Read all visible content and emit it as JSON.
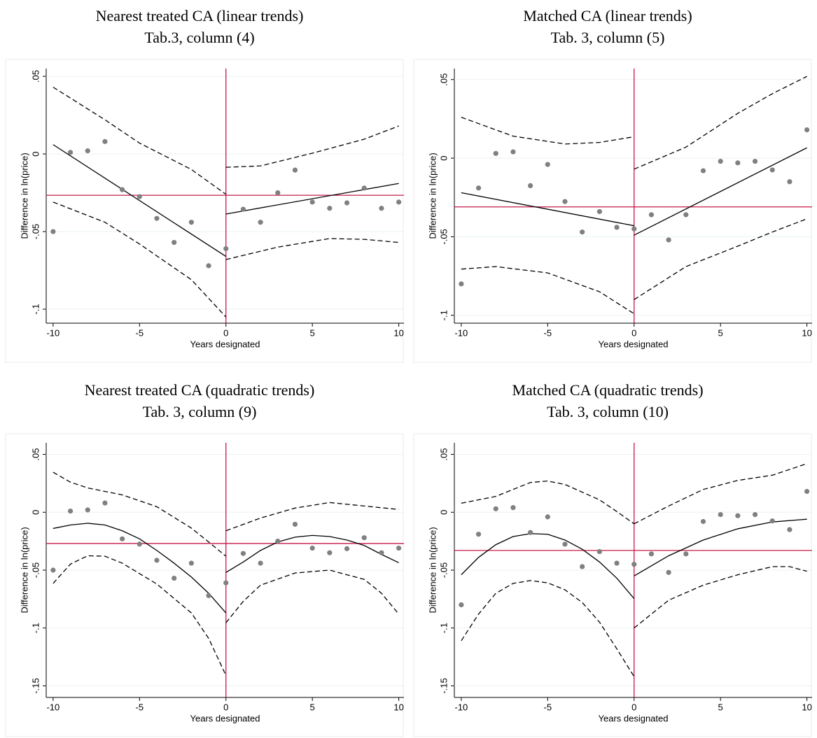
{
  "chart_data": [
    {
      "type": "scatter",
      "title": "Nearest treated CA (linear trends)",
      "subtitle": "Tab.3, column (4)",
      "xlabel": "Years designated",
      "ylabel": "Difference in ln(price)",
      "xlim": [
        -10.4,
        10.3
      ],
      "ylim": [
        -0.109,
        0.055
      ],
      "xticks": [
        -10,
        -5,
        0,
        5,
        10
      ],
      "yticks": [
        {
          "value": -0.1,
          "label": "-.1"
        },
        {
          "value": -0.05,
          "label": "-.05"
        },
        0,
        {
          "value": 0.05,
          "label": ".05"
        }
      ],
      "points": {
        "color": "#808080",
        "x": [
          -10,
          -9,
          -8,
          -7,
          -6,
          -5,
          -4,
          -3,
          -2,
          -1,
          0,
          1,
          2,
          3,
          4,
          5,
          6,
          7,
          8,
          9,
          10
        ],
        "values": [
          -0.05,
          0.001,
          0.002,
          0.008,
          -0.023,
          -0.0275,
          -0.0415,
          -0.057,
          -0.044,
          -0.072,
          -0.061,
          -0.0356,
          -0.044,
          -0.025,
          -0.0104,
          -0.031,
          -0.035,
          -0.0315,
          -0.022,
          -0.035,
          -0.031
        ]
      },
      "fits": [
        {
          "dashed": false,
          "color": "#000000",
          "x": [
            -10,
            0
          ],
          "values": [
            0.006,
            -0.066
          ]
        },
        {
          "dashed": false,
          "color": "#000000",
          "x": [
            0,
            10
          ],
          "values": [
            -0.0387,
            -0.019
          ]
        },
        {
          "dashed": true,
          "color": "#000000",
          "x": [
            -10,
            -7,
            -5,
            -2,
            0
          ],
          "values": [
            0.043,
            0.022,
            0.007,
            -0.01,
            -0.026
          ]
        },
        {
          "dashed": true,
          "color": "#000000",
          "x": [
            -10,
            -7,
            -5,
            -2,
            0
          ],
          "values": [
            -0.031,
            -0.044,
            -0.058,
            -0.081,
            -0.105
          ]
        },
        {
          "dashed": true,
          "color": "#000000",
          "x": [
            0,
            2,
            5,
            8,
            10
          ],
          "values": [
            -0.0086,
            -0.0077,
            0.0005,
            0.0095,
            0.018
          ]
        },
        {
          "dashed": true,
          "color": "#000000",
          "x": [
            0,
            3,
            6,
            8,
            10
          ],
          "values": [
            -0.068,
            -0.06,
            -0.0545,
            -0.055,
            -0.057
          ]
        }
      ],
      "hline": {
        "value": -0.0266,
        "color": "#c8184a"
      },
      "vline": {
        "value": 0,
        "color": "#c8184a"
      }
    },
    {
      "type": "scatter",
      "title": "Matched CA (linear trends)",
      "subtitle": "Tab. 3, column (5)",
      "xlabel": "Years designated",
      "ylabel": "Difference in ln(price)",
      "xlim": [
        -10.4,
        10.3
      ],
      "ylim": [
        -0.105,
        0.057
      ],
      "xticks": [
        -10,
        -5,
        0,
        5,
        10
      ],
      "yticks": [
        {
          "value": -0.1,
          "label": "-.1"
        },
        {
          "value": -0.05,
          "label": "-.05"
        },
        0,
        {
          "value": 0.05,
          "label": ".05"
        }
      ],
      "points": {
        "color": "#808080",
        "x": [
          -10,
          -9,
          -8,
          -7,
          -6,
          -5,
          -4,
          -3,
          -2,
          -1,
          0,
          1,
          2,
          3,
          4,
          5,
          6,
          7,
          8,
          9,
          10
        ],
        "values": [
          -0.08,
          -0.019,
          0.003,
          0.004,
          -0.0175,
          -0.004,
          -0.0276,
          -0.047,
          -0.034,
          -0.044,
          -0.045,
          -0.036,
          -0.052,
          -0.036,
          -0.008,
          -0.002,
          -0.003,
          -0.002,
          -0.0075,
          -0.015,
          0.018
        ]
      },
      "fits": [
        {
          "dashed": false,
          "color": "#000000",
          "x": [
            -10,
            0
          ],
          "values": [
            -0.022,
            -0.043
          ]
        },
        {
          "dashed": false,
          "color": "#000000",
          "x": [
            0,
            10
          ],
          "values": [
            -0.049,
            0.0066
          ]
        },
        {
          "dashed": true,
          "color": "#000000",
          "x": [
            -10,
            -7,
            -4,
            -2,
            0
          ],
          "values": [
            0.026,
            0.014,
            0.009,
            0.01,
            0.0136
          ]
        },
        {
          "dashed": true,
          "color": "#000000",
          "x": [
            -10,
            -8,
            -5,
            -2,
            0
          ],
          "values": [
            -0.0706,
            -0.069,
            -0.073,
            -0.085,
            -0.099
          ]
        },
        {
          "dashed": true,
          "color": "#000000",
          "x": [
            0,
            3,
            6,
            8,
            10
          ],
          "values": [
            -0.007,
            0.007,
            0.0285,
            0.041,
            0.052
          ]
        },
        {
          "dashed": true,
          "color": "#000000",
          "x": [
            0,
            3,
            6,
            8,
            10
          ],
          "values": [
            -0.09,
            -0.069,
            -0.056,
            -0.047,
            -0.0386
          ]
        }
      ],
      "hline": {
        "value": -0.031,
        "color": "#c8184a"
      },
      "vline": {
        "value": 0,
        "color": "#c8184a"
      }
    },
    {
      "type": "scatter",
      "title": "Nearest treated CA (quadratic trends)",
      "subtitle": "Tab. 3, column (9)",
      "xlabel": "Years designated",
      "ylabel": "Difference in ln(price)",
      "xlim": [
        -10.4,
        10.3
      ],
      "ylim": [
        -0.16,
        0.06
      ],
      "xticks": [
        -10,
        -5,
        0,
        5,
        10
      ],
      "yticks": [
        {
          "value": -0.15,
          "label": "-.15"
        },
        {
          "value": -0.1,
          "label": "-.1"
        },
        {
          "value": -0.05,
          "label": "-.05"
        },
        0,
        {
          "value": 0.05,
          "label": ".05"
        }
      ],
      "points": {
        "color": "#808080",
        "x": [
          -10,
          -9,
          -8,
          -7,
          -6,
          -5,
          -4,
          -3,
          -2,
          -1,
          0,
          1,
          2,
          3,
          4,
          5,
          6,
          7,
          8,
          9,
          10
        ],
        "values": [
          -0.05,
          0.001,
          0.002,
          0.008,
          -0.023,
          -0.0275,
          -0.0415,
          -0.057,
          -0.044,
          -0.072,
          -0.061,
          -0.0356,
          -0.044,
          -0.025,
          -0.0104,
          -0.031,
          -0.035,
          -0.0315,
          -0.022,
          -0.035,
          -0.031
        ]
      },
      "fits": [
        {
          "dashed": false,
          "color": "#000000",
          "x": [
            -10,
            -9,
            -8,
            -7,
            -6,
            -5,
            -4,
            -3,
            -2,
            -1,
            0
          ],
          "values": [
            -0.014,
            -0.011,
            -0.0095,
            -0.011,
            -0.016,
            -0.023,
            -0.033,
            -0.044,
            -0.056,
            -0.07,
            -0.087
          ]
        },
        {
          "dashed": false,
          "color": "#000000",
          "x": [
            0,
            1,
            2,
            3,
            4,
            5,
            6,
            7,
            8,
            9,
            10
          ],
          "values": [
            -0.052,
            -0.043,
            -0.033,
            -0.0257,
            -0.0215,
            -0.02,
            -0.021,
            -0.024,
            -0.0287,
            -0.0364,
            -0.0436
          ]
        },
        {
          "dashed": true,
          "color": "#000000",
          "x": [
            -10,
            -9,
            -8,
            -6,
            -4,
            -2,
            -1,
            0
          ],
          "values": [
            0.0346,
            0.026,
            0.021,
            0.015,
            0.0048,
            -0.0137,
            -0.0257,
            -0.038
          ]
        },
        {
          "dashed": true,
          "color": "#000000",
          "x": [
            -10,
            -9,
            -8,
            -7,
            -6,
            -4,
            -2,
            -1,
            0
          ],
          "values": [
            -0.0615,
            -0.0448,
            -0.0376,
            -0.038,
            -0.044,
            -0.062,
            -0.087,
            -0.109,
            -0.141
          ]
        },
        {
          "dashed": true,
          "color": "#000000",
          "x": [
            0,
            2,
            4,
            6,
            8,
            10
          ],
          "values": [
            -0.016,
            -0.005,
            0.0036,
            0.0084,
            0.0054,
            0.0024
          ]
        },
        {
          "dashed": true,
          "color": "#000000",
          "x": [
            0,
            1,
            2,
            4,
            6,
            8,
            9,
            10
          ],
          "values": [
            -0.0955,
            -0.077,
            -0.063,
            -0.0525,
            -0.05,
            -0.058,
            -0.07,
            -0.088
          ]
        }
      ],
      "hline": {
        "value": -0.027,
        "color": "#c8184a"
      },
      "vline": {
        "value": 0,
        "color": "#c8184a"
      }
    },
    {
      "type": "scatter",
      "title": "Matched CA (quadratic trends)",
      "subtitle": "Tab. 3, column (10)",
      "xlabel": "Years designated",
      "ylabel": "Difference in ln(price)",
      "xlim": [
        -10.4,
        10.3
      ],
      "ylim": [
        -0.16,
        0.06
      ],
      "xticks": [
        -10,
        -5,
        0,
        5,
        10
      ],
      "yticks": [
        {
          "value": -0.15,
          "label": "-.15"
        },
        {
          "value": -0.1,
          "label": "-.1"
        },
        {
          "value": -0.05,
          "label": "-.05"
        },
        0,
        {
          "value": 0.05,
          "label": ".05"
        }
      ],
      "points": {
        "color": "#808080",
        "x": [
          -10,
          -9,
          -8,
          -7,
          -6,
          -5,
          -4,
          -3,
          -2,
          -1,
          0,
          1,
          2,
          3,
          4,
          5,
          6,
          7,
          8,
          9,
          10
        ],
        "values": [
          -0.08,
          -0.019,
          0.003,
          0.004,
          -0.0175,
          -0.004,
          -0.0276,
          -0.047,
          -0.034,
          -0.044,
          -0.045,
          -0.036,
          -0.052,
          -0.036,
          -0.008,
          -0.002,
          -0.003,
          -0.002,
          -0.0075,
          -0.015,
          0.018
        ]
      },
      "fits": [
        {
          "dashed": false,
          "color": "#000000",
          "x": [
            -10,
            -9,
            -8,
            -7,
            -6,
            -5,
            -4,
            -3,
            -2,
            -1,
            0
          ],
          "values": [
            -0.054,
            -0.039,
            -0.028,
            -0.021,
            -0.0185,
            -0.019,
            -0.024,
            -0.032,
            -0.043,
            -0.057,
            -0.0746
          ]
        },
        {
          "dashed": false,
          "color": "#000000",
          "x": [
            0,
            2,
            4,
            6,
            8,
            10
          ],
          "values": [
            -0.055,
            -0.0376,
            -0.024,
            -0.0143,
            -0.0084,
            -0.006
          ]
        },
        {
          "dashed": true,
          "color": "#000000",
          "x": [
            -10,
            -8,
            -6,
            -5,
            -4,
            -2,
            -1,
            0
          ],
          "values": [
            0.0078,
            0.0137,
            0.0257,
            0.027,
            0.024,
            0.0107,
            0.0006,
            -0.01
          ]
        },
        {
          "dashed": true,
          "color": "#000000",
          "x": [
            -10,
            -9,
            -8,
            -7,
            -6,
            -5,
            -4,
            -3,
            -2,
            -1,
            0
          ],
          "values": [
            -0.111,
            -0.088,
            -0.07,
            -0.0615,
            -0.059,
            -0.061,
            -0.067,
            -0.078,
            -0.095,
            -0.118,
            -0.142
          ]
        },
        {
          "dashed": true,
          "color": "#000000",
          "x": [
            0,
            2,
            4,
            6,
            8,
            10
          ],
          "values": [
            -0.01,
            0.0054,
            0.0197,
            0.0275,
            0.032,
            0.042
          ]
        },
        {
          "dashed": true,
          "color": "#000000",
          "x": [
            0,
            2,
            4,
            6,
            8,
            9,
            10
          ],
          "values": [
            -0.1,
            -0.076,
            -0.063,
            -0.054,
            -0.047,
            -0.047,
            -0.051
          ]
        }
      ],
      "hline": {
        "value": -0.033,
        "color": "#c8184a"
      },
      "vline": {
        "value": 0,
        "color": "#c8184a"
      }
    }
  ]
}
